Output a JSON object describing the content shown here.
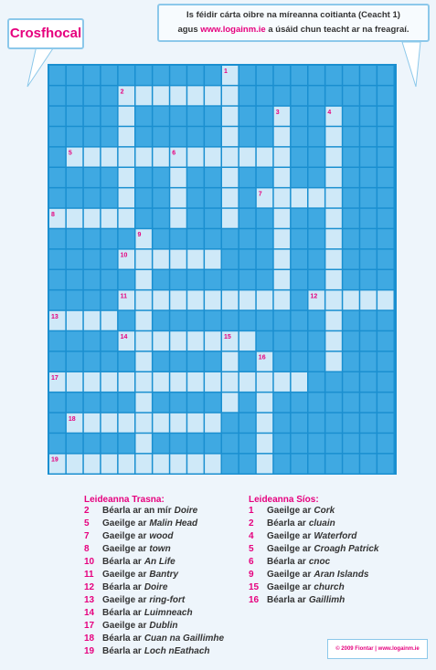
{
  "header": {
    "title": "Crosfhocal",
    "note": {
      "line1": "Is féidir cárta oibre na míreanna coitianta (Ceacht 1)",
      "line2_before": "agus",
      "link": "www.logainm.ie",
      "line2_after": "a úsáid chun teacht ar na freagraí."
    }
  },
  "grid_numbers": [
    1,
    2,
    3,
    4,
    5,
    6,
    7,
    8,
    9,
    10,
    11,
    12,
    13,
    14,
    15,
    16,
    17,
    18,
    19
  ],
  "clues": {
    "across": {
      "heading": "Leideanna Trasna:",
      "items": [
        {
          "number": 2,
          "text": "Béarla ar an mír",
          "term": "Doire"
        },
        {
          "number": 5,
          "text": "Gaeilge ar",
          "term": "Malin Head"
        },
        {
          "number": 7,
          "text": "Gaeilge ar",
          "term": "wood"
        },
        {
          "number": 8,
          "text": "Gaeilge ar",
          "term": "town"
        },
        {
          "number": 10,
          "text": "Béarla ar",
          "term": "An Life"
        },
        {
          "number": 11,
          "text": "Gaeilge ar",
          "term": "Bantry"
        },
        {
          "number": 12,
          "text": "Béarla ar",
          "term": "Doire"
        },
        {
          "number": 13,
          "text": "Gaeilge ar",
          "term": "ring-fort"
        },
        {
          "number": 14,
          "text": "Béarla ar",
          "term": "Luimneach"
        },
        {
          "number": 17,
          "text": "Gaeilge ar",
          "term": "Dublin"
        },
        {
          "number": 18,
          "text": "Béarla ar",
          "term": "Cuan na Gaillimhe"
        },
        {
          "number": 19,
          "text": "Béarla ar",
          "term": "Loch nEathach"
        }
      ]
    },
    "down": {
      "heading": "Leideanna Síos:",
      "items": [
        {
          "number": 1,
          "text": "Gaeilge ar",
          "term": "Cork"
        },
        {
          "number": 2,
          "text": "Béarla ar",
          "term": "cluain"
        },
        {
          "number": 4,
          "text": "Gaeilge ar",
          "term": "Waterford"
        },
        {
          "number": 5,
          "text": "Gaeilge ar",
          "term": "Croagh Patrick"
        },
        {
          "number": 6,
          "text": "Béarla ar",
          "term": "cnoc"
        },
        {
          "number": 9,
          "text": "Gaeilge ar",
          "term": "Aran Islands"
        },
        {
          "number": 15,
          "text": "Gaeilge ar",
          "term": "church"
        },
        {
          "number": 16,
          "text": "Béarla ar",
          "term": "Gaillimh"
        }
      ]
    }
  },
  "footer": "© 2009 Fiontar | www.logainm.ie"
}
